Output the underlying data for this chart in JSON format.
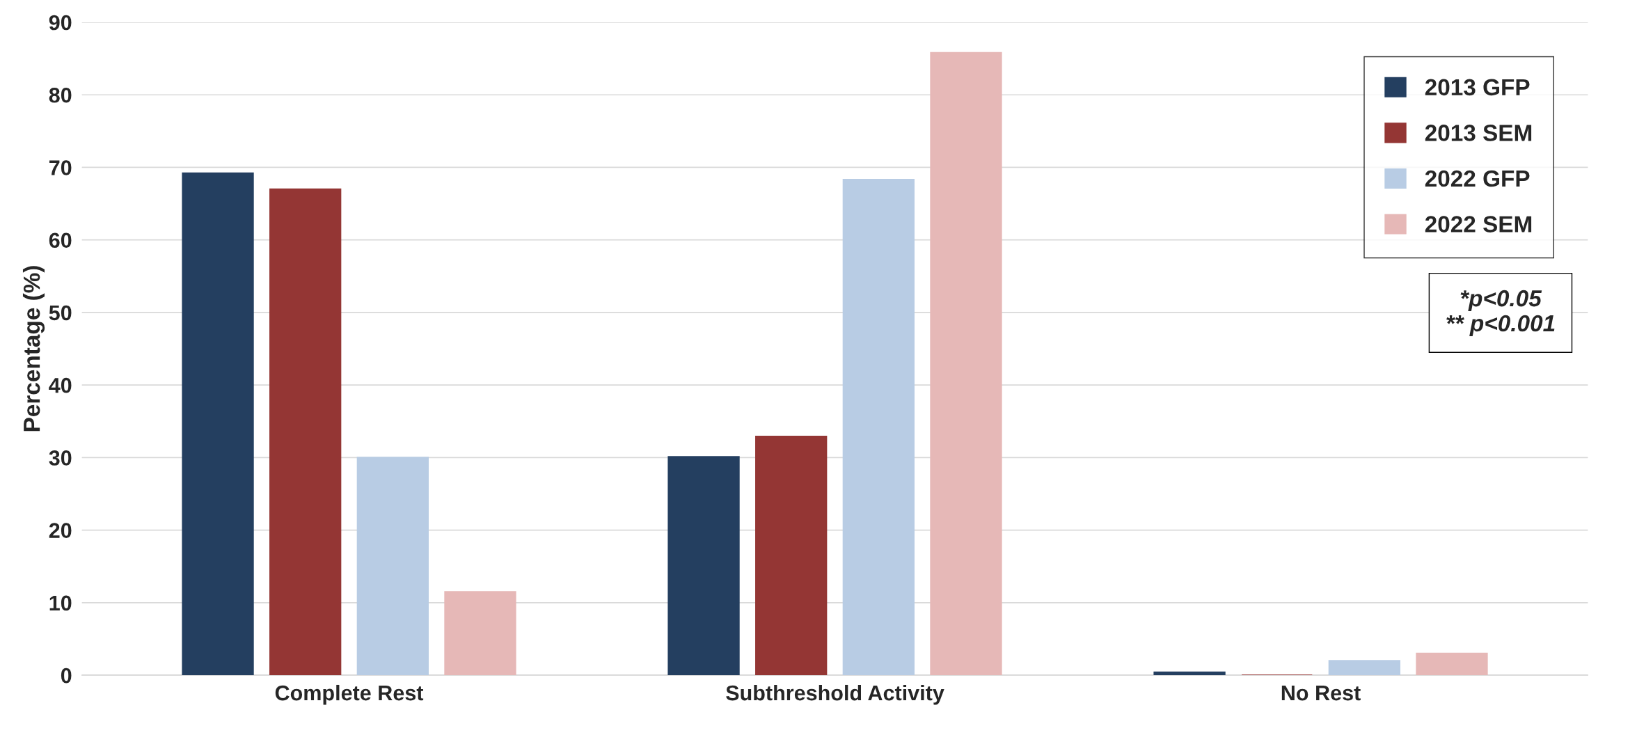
{
  "chart_data": {
    "type": "bar",
    "ylabel": "Percentage (%)",
    "categories": [
      "Complete Rest",
      "Subthreshold Activity",
      "No Rest"
    ],
    "series": [
      {
        "name": "2013 GFP",
        "color": "#243f60",
        "values": [
          69.2,
          30.1,
          0.4
        ]
      },
      {
        "name": "2013 SEM",
        "color": "#943634",
        "values": [
          67.0,
          32.9,
          0
        ]
      },
      {
        "name": "2022 GFP",
        "color": "#b8cce4",
        "values": [
          30.0,
          68.3,
          2.0
        ]
      },
      {
        "name": "2022 SEM",
        "color": "#e6b8b7",
        "values": [
          11.5,
          85.8,
          3.0
        ]
      }
    ],
    "ylim": [
      0,
      90
    ],
    "yticks": [
      0,
      10,
      20,
      30,
      40,
      50,
      60,
      70,
      80,
      90
    ],
    "grid": "y",
    "legend": "top right",
    "annotations": [
      "*p<0.05\n** p<0.001"
    ]
  }
}
